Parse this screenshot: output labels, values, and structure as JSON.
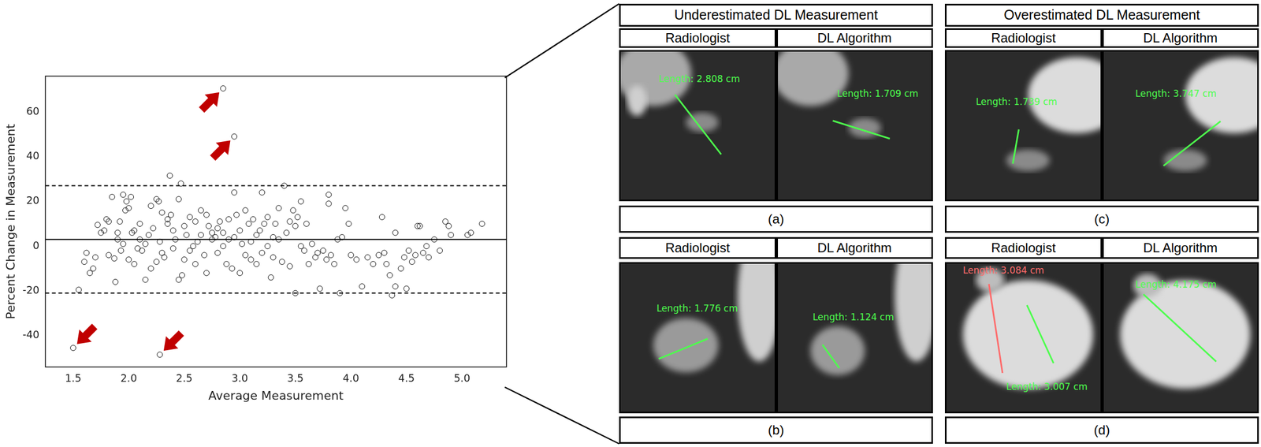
{
  "chart_data": {
    "type": "scatter",
    "x_label": "Average Measurement",
    "y_label": "Percent Change in Measurement",
    "color": "#000000",
    "marker": "circle",
    "grid": false,
    "xlim": [
      1.25,
      5.4
    ],
    "ylim": [
      -54,
      76
    ],
    "xticks": [
      1.5,
      {
        "value": 2,
        "label": "2.0"
      },
      2.5,
      {
        "value": 3,
        "label": "3.0"
      },
      3.5,
      {
        "value": 4,
        "label": "4.0"
      },
      4.5,
      {
        "value": 5,
        "label": "5.0"
      }
    ],
    "yticks": [
      -40,
      -20,
      0,
      20,
      40,
      60
    ],
    "reference_lines": [
      {
        "value": 3,
        "line_style": "solid"
      },
      {
        "value": 27,
        "line_style": "dashed"
      },
      {
        "value": -21,
        "line_style": "dashed"
      }
    ],
    "arrows": [
      {
        "x": 1.5,
        "y": -45.5,
        "color": "#c00000"
      },
      {
        "x": 2.28,
        "y": -48.5,
        "color": "#c00000"
      },
      {
        "x": 2.85,
        "y": 70.5,
        "color": "#c00000"
      },
      {
        "x": 2.95,
        "y": 49,
        "color": "#c00000"
      }
    ],
    "x": [
      1.5,
      2.28,
      2.85,
      2.95,
      1.55,
      1.6,
      1.62,
      1.65,
      1.68,
      1.7,
      1.72,
      1.75,
      1.78,
      1.8,
      1.82,
      1.82,
      1.85,
      1.87,
      1.88,
      1.9,
      1.9,
      1.92,
      1.93,
      1.95,
      1.95,
      1.97,
      1.98,
      2.0,
      2.0,
      2.02,
      2.03,
      2.05,
      2.05,
      2.08,
      2.1,
      2.1,
      2.12,
      2.15,
      2.15,
      2.18,
      2.2,
      2.2,
      2.22,
      2.25,
      2.25,
      2.27,
      2.28,
      2.3,
      2.3,
      2.32,
      2.35,
      2.35,
      2.37,
      2.38,
      2.4,
      2.4,
      2.42,
      2.45,
      2.45,
      2.47,
      2.48,
      2.5,
      2.5,
      2.52,
      2.55,
      2.55,
      2.58,
      2.6,
      2.6,
      2.62,
      2.65,
      2.65,
      2.68,
      2.7,
      2.7,
      2.72,
      2.75,
      2.75,
      2.78,
      2.8,
      2.8,
      2.82,
      2.85,
      2.85,
      2.88,
      2.9,
      2.9,
      2.93,
      2.95,
      2.95,
      2.97,
      3.0,
      3.0,
      3.02,
      3.05,
      3.05,
      3.08,
      3.1,
      3.1,
      3.12,
      3.15,
      3.15,
      3.18,
      3.2,
      3.2,
      3.22,
      3.25,
      3.25,
      3.28,
      3.3,
      3.3,
      3.32,
      3.35,
      3.35,
      3.38,
      3.4,
      3.42,
      3.45,
      3.45,
      3.48,
      3.5,
      3.5,
      3.52,
      3.55,
      3.55,
      3.58,
      3.6,
      3.62,
      3.65,
      3.68,
      3.7,
      3.72,
      3.75,
      3.78,
      3.8,
      3.8,
      3.82,
      3.85,
      3.88,
      3.9,
      3.92,
      3.95,
      3.98,
      4.0,
      4.05,
      4.1,
      4.15,
      4.2,
      4.25,
      4.28,
      4.3,
      4.32,
      4.35,
      4.37,
      4.4,
      4.4,
      4.45,
      4.48,
      4.5,
      4.52,
      4.55,
      4.58,
      4.6,
      4.62,
      4.65,
      4.68,
      4.7,
      4.75,
      4.8,
      4.85,
      4.88,
      4.9,
      5.05,
      5.08,
      5.18
    ],
    "values": [
      -45.5,
      -48.5,
      70.5,
      49,
      -19.5,
      -7,
      -3,
      -12,
      -10,
      -5,
      9.5,
      6,
      7,
      12,
      11,
      -4,
      22,
      -5.5,
      -16,
      6,
      3,
      11,
      -2,
      1,
      23,
      16,
      20,
      17,
      -6,
      22,
      6,
      7,
      -8,
      -1,
      10,
      3,
      -2,
      -15,
      1,
      5,
      18,
      -10,
      8,
      21,
      -7,
      20,
      2,
      15,
      -3,
      -5,
      12,
      10,
      31.5,
      14,
      -1,
      7,
      3,
      -15,
      21,
      28,
      -13,
      9,
      -6,
      5,
      13,
      -2,
      0,
      11,
      -8,
      2,
      16,
      5,
      -4,
      14,
      -12,
      9,
      3,
      6,
      4,
      8,
      -3,
      11,
      6,
      0,
      -8,
      12,
      3,
      -10,
      4,
      24,
      14,
      -12,
      7,
      1,
      16,
      -4,
      10,
      2,
      -6,
      12,
      -8,
      5,
      7,
      24,
      -3,
      10,
      13,
      0,
      -14,
      4,
      -5,
      10,
      17,
      3,
      -7,
      27,
      6,
      11,
      -9,
      16,
      9,
      -21,
      13,
      20,
      0,
      -2,
      10,
      -8,
      1,
      -5,
      -3,
      -19,
      -2,
      -6,
      23,
      19,
      -4,
      -8,
      3,
      -21,
      4,
      17,
      10,
      -4,
      -6,
      -18,
      -5,
      -8,
      -4,
      13,
      -3,
      -8,
      -13,
      -22,
      6,
      -18,
      -10,
      -5,
      -19,
      -2,
      -7,
      -4,
      9,
      9,
      -3,
      0,
      -5,
      3,
      -2,
      11,
      9,
      5,
      5,
      6,
      10
    ]
  },
  "columns": [
    {
      "header": "Underestimated DL Measurement",
      "panels": [
        {
          "letter": "(a)",
          "images": [
            {
              "title": "Radiologist",
              "labels": [
                {
                  "text": "Length: 2.808 cm",
                  "color": "#4dff4d"
                }
              ]
            },
            {
              "title": "DL Algorithm",
              "labels": [
                {
                  "text": "Length: 1.709 cm",
                  "color": "#4dff4d"
                }
              ]
            }
          ]
        },
        {
          "letter": "(b)",
          "images": [
            {
              "title": "Radiologist",
              "labels": [
                {
                  "text": "Length: 1.776 cm",
                  "color": "#4dff4d"
                }
              ]
            },
            {
              "title": "DL Algorithm",
              "labels": [
                {
                  "text": "Length: 1.124 cm",
                  "color": "#4dff4d"
                }
              ]
            }
          ]
        }
      ]
    },
    {
      "header": "Overestimated DL Measurement",
      "panels": [
        {
          "letter": "(c)",
          "images": [
            {
              "title": "Radiologist",
              "labels": [
                {
                  "text": "Length: 1.739 cm",
                  "color": "#4dff4d"
                }
              ]
            },
            {
              "title": "DL Algorithm",
              "labels": [
                {
                  "text": "Length: 3.747 cm",
                  "color": "#4dff4d"
                }
              ]
            }
          ]
        },
        {
          "letter": "(d)",
          "images": [
            {
              "title": "Radiologist",
              "labels": [
                {
                  "text": "Length: 3.084 cm",
                  "color": "#ff6b6b"
                },
                {
                  "text": "Length: 3.007 cm",
                  "color": "#4dff4d"
                }
              ]
            },
            {
              "title": "DL Algorithm",
              "labels": [
                {
                  "text": "Length: 4.175 cm",
                  "color": "#4dff4d"
                }
              ]
            }
          ]
        }
      ]
    }
  ]
}
